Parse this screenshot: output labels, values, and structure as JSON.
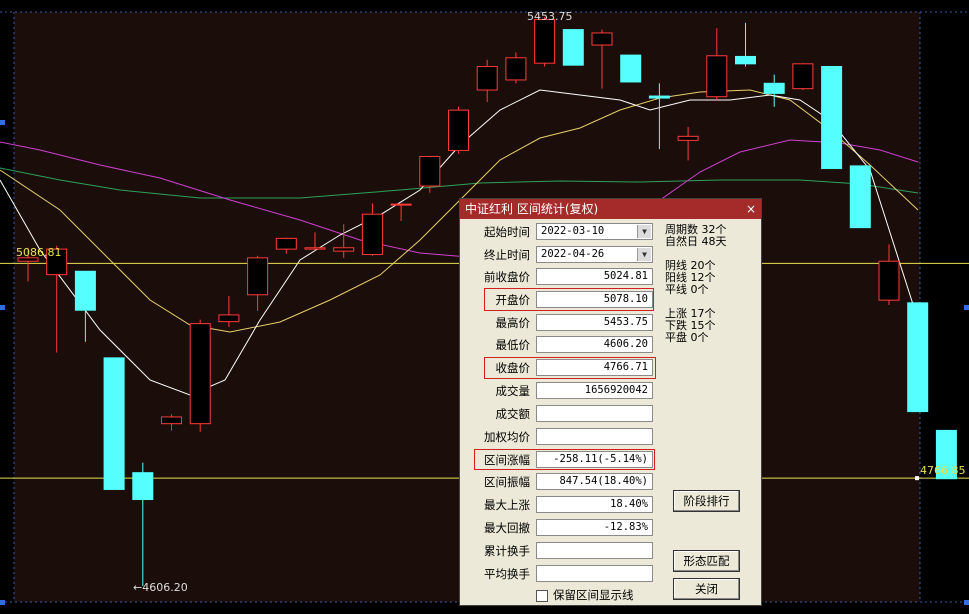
{
  "colors": {
    "up": "#ff3a3a",
    "down": "#55ffff",
    "ma5": "#ffffff",
    "ma10": "#e8cf6a",
    "ma20": "#d040d0",
    "ma60": "#2ea05a",
    "refline": "#e8e050"
  },
  "chart": {
    "high_marker": "5453.75",
    "low_marker": "←4606.20",
    "left_price": "5086.81",
    "right_price": "4766.85"
  },
  "chart_data": {
    "type": "candlestick",
    "candles": [
      {
        "o": 5090,
        "h": 5110,
        "c": 5095,
        "l": 5060
      },
      {
        "o": 5070,
        "h": 5113,
        "c": 5108,
        "l": 4954
      },
      {
        "o": 5075,
        "h": 5075,
        "c": 5017,
        "l": 4970
      },
      {
        "o": 4946,
        "h": 4946,
        "c": 4750,
        "l": 4750
      },
      {
        "o": 4775,
        "h": 4790,
        "c": 4735,
        "l": 4606.2
      },
      {
        "o": 4848,
        "h": 4862,
        "c": 4858,
        "l": 4838
      },
      {
        "o": 4848,
        "h": 5003,
        "c": 4997,
        "l": 4836
      },
      {
        "o": 5000,
        "h": 5038,
        "c": 5010,
        "l": 4992
      },
      {
        "o": 5040,
        "h": 5098,
        "c": 5095,
        "l": 5016
      },
      {
        "o": 5108,
        "h": 5125,
        "c": 5124,
        "l": 5101
      },
      {
        "o": 5108,
        "h": 5133,
        "c": 5110,
        "l": 5106
      },
      {
        "o": 5105,
        "h": 5145,
        "c": 5110,
        "l": 5095
      },
      {
        "o": 5100,
        "h": 5176,
        "c": 5160,
        "l": 5098
      },
      {
        "o": 5175,
        "h": 5176,
        "c": 5175,
        "l": 5150
      },
      {
        "o": 5202,
        "h": 5238,
        "c": 5246,
        "l": 5192
      },
      {
        "o": 5255,
        "h": 5320,
        "c": 5315,
        "l": 5250
      },
      {
        "o": 5345,
        "h": 5390,
        "c": 5380,
        "l": 5327
      },
      {
        "o": 5360,
        "h": 5401,
        "c": 5393,
        "l": 5355
      },
      {
        "o": 5385,
        "h": 5453.75,
        "c": 5450,
        "l": 5380
      },
      {
        "o": 5435,
        "h": 5430,
        "c": 5382,
        "l": 5382
      },
      {
        "o": 5412,
        "h": 5435,
        "c": 5430,
        "l": 5347
      },
      {
        "o": 5397,
        "h": 5397,
        "c": 5357,
        "l": 5357
      },
      {
        "o": 5336,
        "h": 5355,
        "c": 5333,
        "l": 5257
      },
      {
        "o": 5270,
        "h": 5290,
        "c": 5276,
        "l": 5240
      },
      {
        "o": 5335,
        "h": 5437,
        "c": 5396,
        "l": 5330
      },
      {
        "o": 5395,
        "h": 5445,
        "c": 5384,
        "l": 5380
      },
      {
        "o": 5355,
        "h": 5368,
        "c": 5340,
        "l": 5320
      },
      {
        "o": 5347,
        "h": 5385,
        "c": 5384,
        "l": 5345
      },
      {
        "o": 5380,
        "h": 5380,
        "c": 5228,
        "l": 5228
      },
      {
        "o": 5232,
        "h": 5232,
        "c": 5140,
        "l": 5140
      },
      {
        "o": 5032,
        "h": 5115,
        "c": 5090,
        "l": 5025
      },
      {
        "o": 5028,
        "h": 5028,
        "c": 4866,
        "l": 4866
      },
      {
        "o": 4838,
        "h": 4838,
        "c": 4766,
        "l": 4766
      }
    ],
    "reference_lines": [
      5086.81,
      4766.85
    ]
  },
  "dialog": {
    "title": "中证红利 区间统计(复权)",
    "close": "×",
    "rows": [
      {
        "label": "起始时间",
        "value": "2022-03-10"
      },
      {
        "label": "终止时间",
        "value": "2022-04-26"
      },
      {
        "label": "前收盘价",
        "value": "5024.81"
      },
      {
        "label": "开盘价",
        "value": "5078.10"
      },
      {
        "label": "最高价",
        "value": "5453.75"
      },
      {
        "label": "最低价",
        "value": "4606.20"
      },
      {
        "label": "收盘价",
        "value": "4766.71"
      },
      {
        "label": "成交量",
        "value": "1656920042"
      },
      {
        "label": "成交额",
        "value": ""
      },
      {
        "label": "加权均价",
        "value": ""
      },
      {
        "label": "区间涨幅",
        "value": "-258.11(-5.14%)"
      },
      {
        "label": "区间振幅",
        "value": "847.54(18.40%)"
      },
      {
        "label": "最大上涨",
        "value": "18.40%"
      },
      {
        "label": "最大回撤",
        "value": "-12.83%"
      },
      {
        "label": "累计换手",
        "value": ""
      },
      {
        "label": "平均换手",
        "value": ""
      }
    ],
    "stats": {
      "periods": "周期数  32个",
      "days": "自然日  48天",
      "yin": "阴线  20个",
      "yang": "阳线  12个",
      "flat_line": "平线  0个",
      "up": "上涨  17个",
      "down": "下跌  15个",
      "flat": "平盘  0个"
    },
    "buttons": {
      "rank": "阶段排行",
      "match": "形态匹配",
      "close": "关闭"
    },
    "checkbox_label": "保留区间显示线"
  }
}
